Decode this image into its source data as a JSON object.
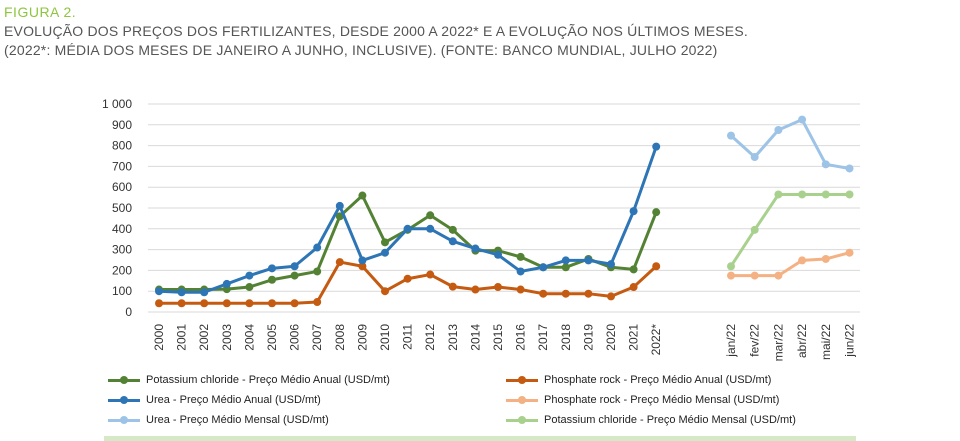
{
  "figure": {
    "label": "FIGURA 2.",
    "caption_line1": "EVOLUÇÃO DOS PREÇOS DOS FERTILIZANTES, DESDE 2000 A 2022* E A EVOLUÇÃO NOS ÚLTIMOS MESES.",
    "caption_line2": "(2022*: MÉDIA DOS MESES DE JANEIRO A JUNHO, INCLUSIVE). (FONTE: BANCO MUNDIAL, JULHO 2022)"
  },
  "chart_data": {
    "type": "line",
    "ylim": [
      0,
      1000
    ],
    "yticks": [
      0,
      100,
      200,
      300,
      400,
      500,
      600,
      700,
      800,
      900,
      1000
    ],
    "ytick_labels": [
      "0",
      "100",
      "200",
      "300",
      "400",
      "500",
      "600",
      "700",
      "800",
      "900",
      "1 000"
    ],
    "grid": true,
    "legend_position": "bottom",
    "annual_categories": [
      "2000",
      "2001",
      "2002",
      "2003",
      "2004",
      "2005",
      "2006",
      "2007",
      "2008",
      "2009",
      "2010",
      "2011",
      "2012",
      "2013",
      "2014",
      "2015",
      "2016",
      "2017",
      "2018",
      "2019",
      "2020",
      "2021",
      "2022*"
    ],
    "monthly_categories": [
      "jan/22",
      "fev/22",
      "mar/22",
      "abr/22",
      "mai/22",
      "jun/22"
    ],
    "series": [
      {
        "name": "Potassium chloride - Preço Médio Anual  (USD/mt)",
        "group": "annual",
        "color": "#548235",
        "values": [
          108,
          108,
          108,
          110,
          120,
          155,
          175,
          195,
          460,
          560,
          335,
          395,
          465,
          395,
          295,
          295,
          265,
          215,
          215,
          255,
          215,
          205,
          480
        ]
      },
      {
        "name": "Phosphate rock - Preço Médio Anual (USD/mt)",
        "group": "annual",
        "color": "#c55a11",
        "values": [
          42,
          42,
          42,
          42,
          42,
          42,
          42,
          48,
          240,
          220,
          100,
          160,
          180,
          122,
          108,
          120,
          108,
          88,
          88,
          88,
          75,
          120,
          220
        ]
      },
      {
        "name": "Urea - Preço Médio Anual (USD/mt)",
        "group": "annual",
        "color": "#2e75b6",
        "values": [
          100,
          95,
          95,
          135,
          175,
          210,
          220,
          310,
          510,
          248,
          285,
          400,
          400,
          340,
          305,
          275,
          195,
          215,
          248,
          248,
          230,
          485,
          795
        ]
      },
      {
        "name": "Phosphate rock - Preço Médio Mensal (USD/mt)",
        "group": "monthly",
        "color": "#f4b183",
        "values": [
          175,
          175,
          175,
          248,
          255,
          285
        ]
      },
      {
        "name": "Urea - Preço Médio Mensal  (USD/mt)",
        "group": "monthly",
        "color": "#9dc3e6",
        "values": [
          848,
          745,
          875,
          925,
          710,
          690
        ]
      },
      {
        "name": "Potassium chloride - Preço Médio Mensal  (USD/mt)",
        "group": "monthly",
        "color": "#a9d18e",
        "values": [
          220,
          395,
          565,
          565,
          565,
          565
        ]
      }
    ]
  }
}
